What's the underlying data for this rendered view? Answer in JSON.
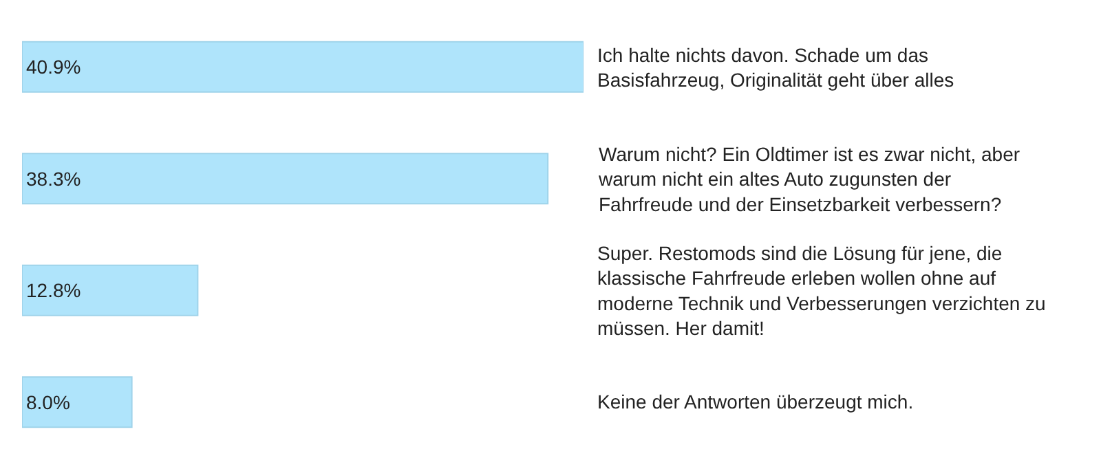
{
  "chart_data": {
    "type": "bar",
    "orientation": "horizontal",
    "categories": [
      "Ich halte nichts davon. Schade um das Basisfahrzeug, Originalität geht über alles",
      "Warum nicht? Ein Oldtimer ist es zwar nicht, aber warum nicht ein altes Auto zugunsten der Fahrfreude und der Einsetzbarkeit verbessern?",
      "Super. Restomods sind die Lösung für jene, die klassische Fahrfreude erleben wollen ohne auf moderne Technik und Verbesserungen verzichten zu müssen. Her damit!",
      "Keine der Antworten überzeugt mich."
    ],
    "values": [
      40.9,
      38.3,
      12.8,
      8.0
    ],
    "value_labels": [
      "40.9%",
      "38.3%",
      "12.8%",
      "8.0%"
    ],
    "color": "#afe4fb"
  }
}
